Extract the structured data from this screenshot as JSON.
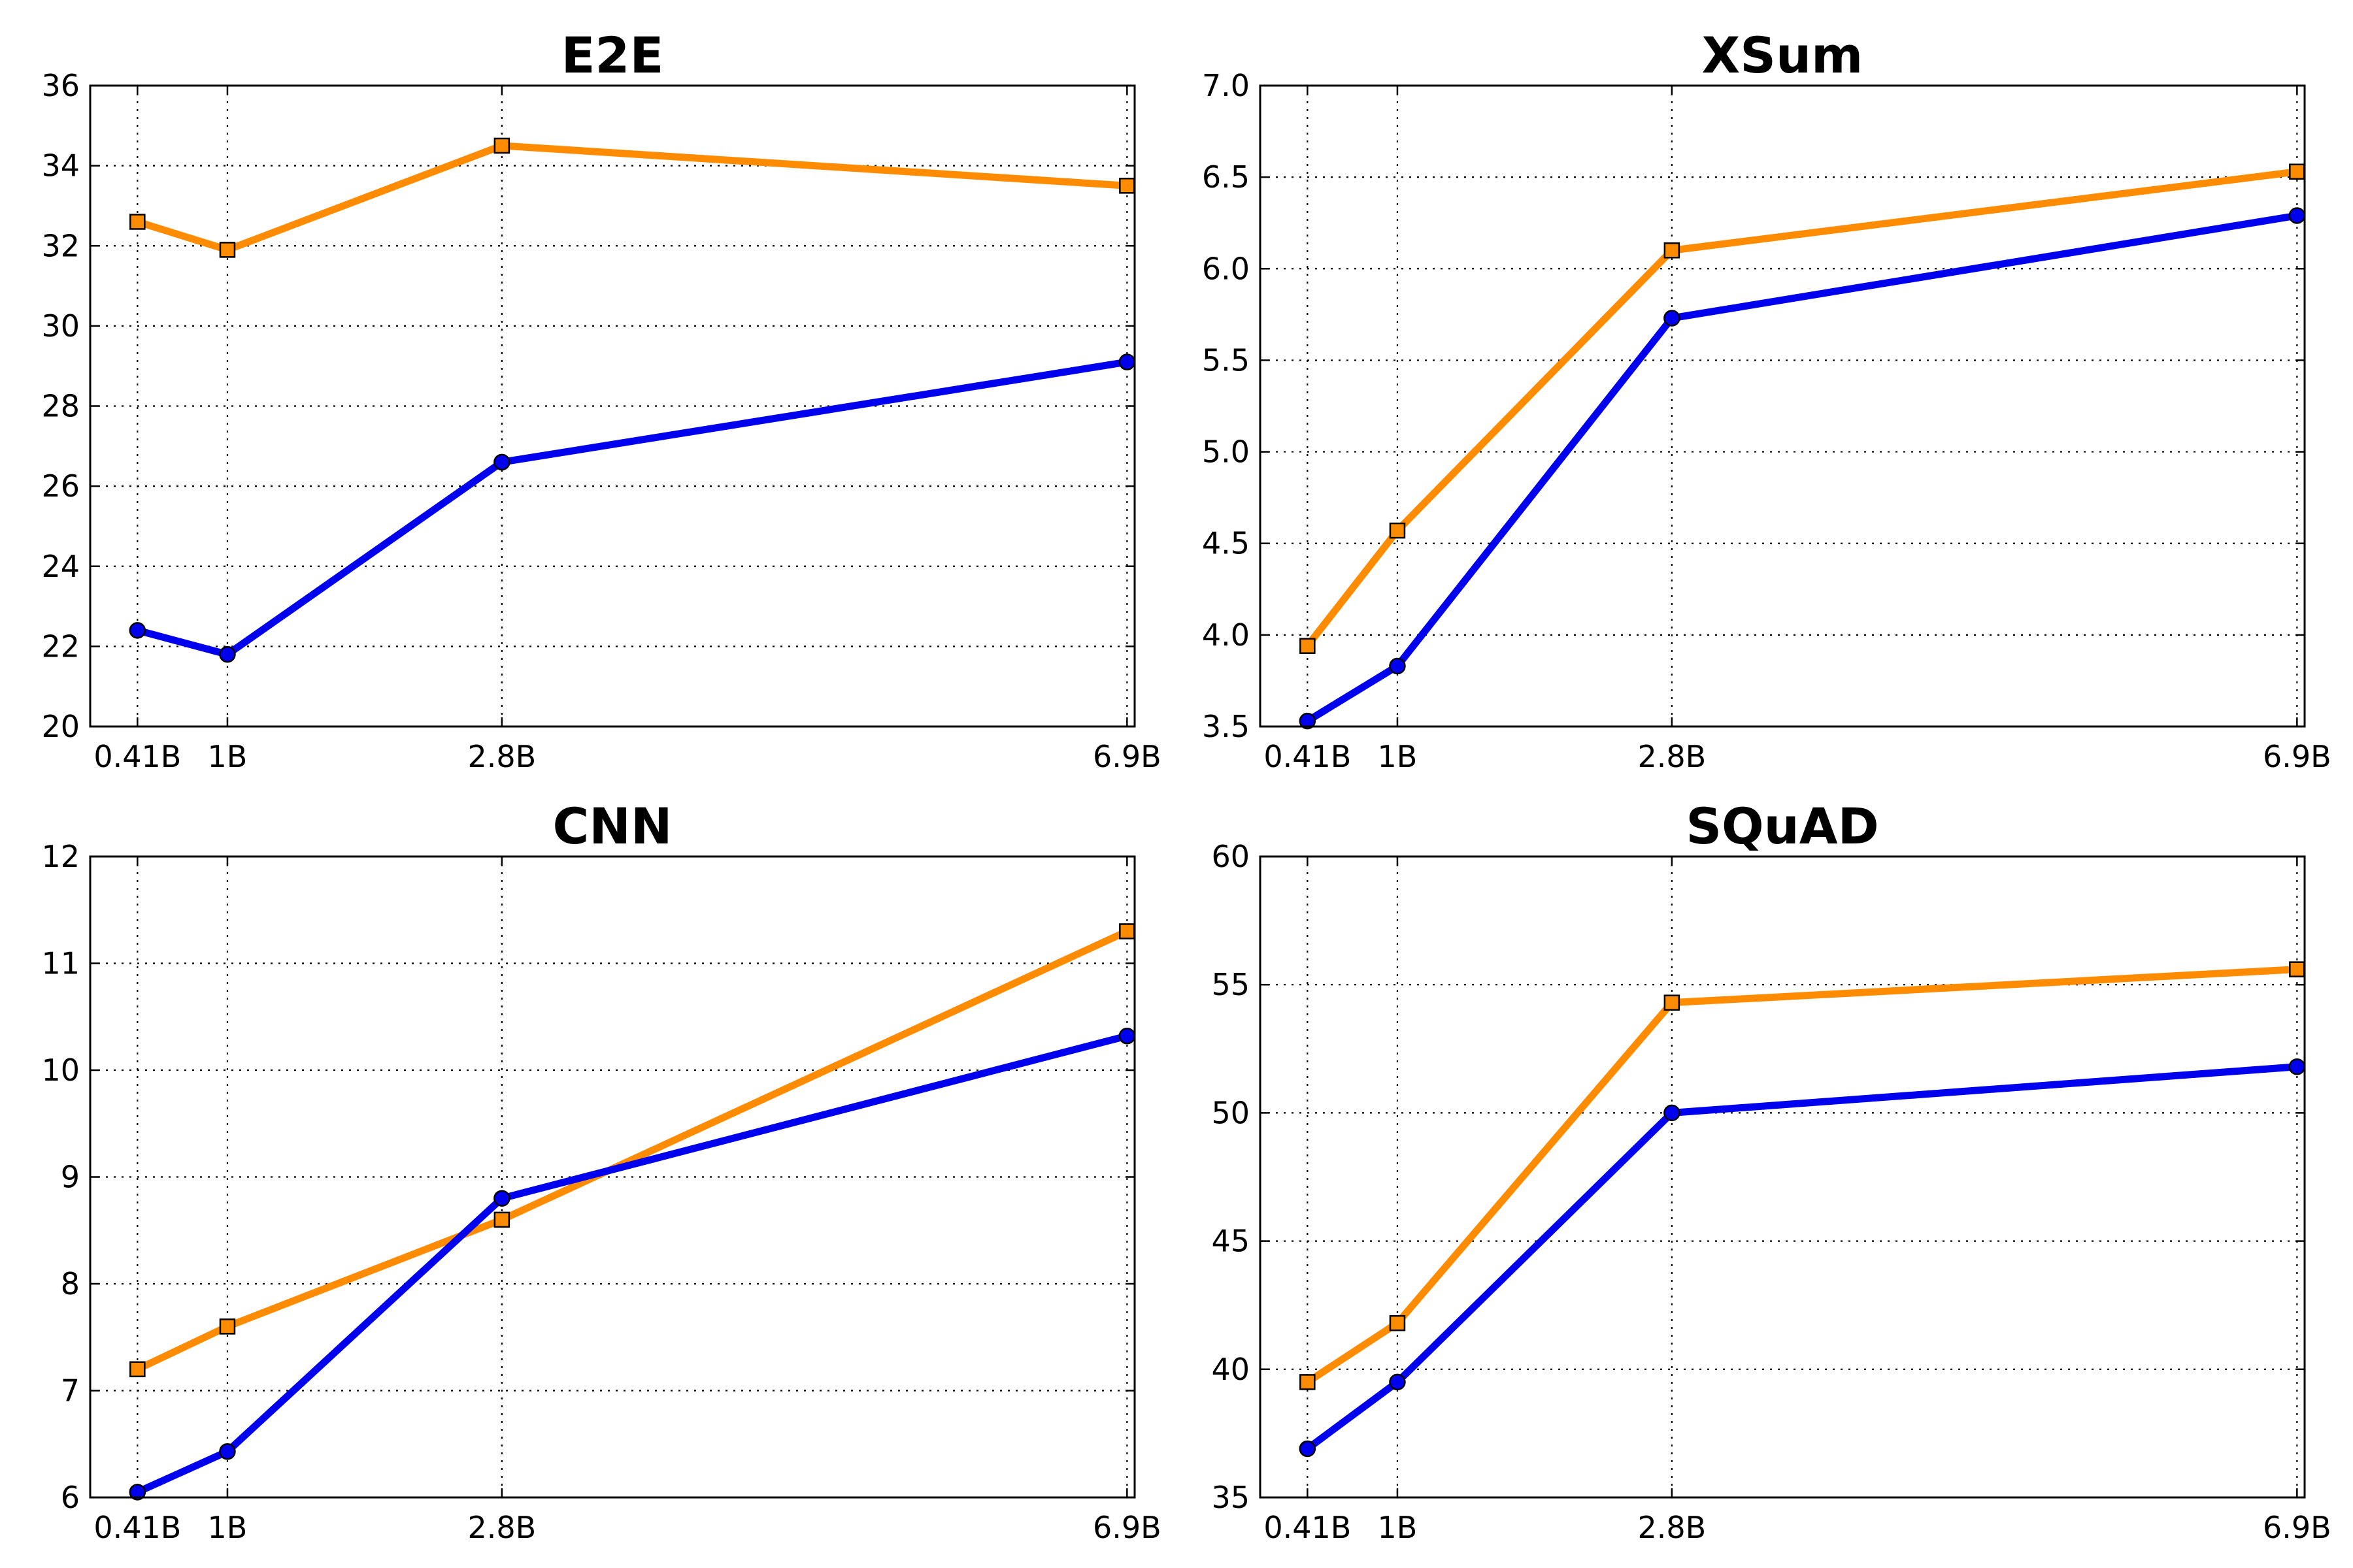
{
  "colors": {
    "series_orange": "#ff8c00",
    "series_blue": "#0000ee",
    "grid": "#000000",
    "axes": "#000000"
  },
  "chart_data": [
    {
      "type": "line",
      "title": "E2E",
      "x_categories": [
        "0.41B",
        "1B",
        "2.8B",
        "6.9B"
      ],
      "x_values": [
        0.41,
        1.0,
        2.8,
        6.9
      ],
      "xlim": [
        0.1,
        6.95
      ],
      "ylim": [
        20,
        36
      ],
      "yticks": [
        "20",
        "22",
        "24",
        "26",
        "28",
        "30",
        "32",
        "34",
        "36"
      ],
      "grid": true,
      "series": [
        {
          "color": "#ff8c00",
          "marker": "square",
          "values": [
            32.6,
            31.9,
            34.5,
            33.5
          ]
        },
        {
          "color": "#0000ee",
          "marker": "circle",
          "values": [
            22.4,
            21.8,
            26.6,
            29.1
          ]
        }
      ]
    },
    {
      "type": "line",
      "title": "XSum",
      "x_categories": [
        "0.41B",
        "1B",
        "2.8B",
        "6.9B"
      ],
      "x_values": [
        0.41,
        1.0,
        2.8,
        6.9
      ],
      "xlim": [
        0.1,
        6.95
      ],
      "ylim": [
        3.5,
        7.0
      ],
      "yticks": [
        "3.5",
        "4.0",
        "4.5",
        "5.0",
        "5.5",
        "6.0",
        "6.5",
        "7.0"
      ],
      "grid": true,
      "series": [
        {
          "color": "#ff8c00",
          "marker": "square",
          "values": [
            3.94,
            4.57,
            6.1,
            6.53
          ]
        },
        {
          "color": "#0000ee",
          "marker": "circle",
          "values": [
            3.53,
            3.83,
            5.73,
            6.29
          ]
        }
      ]
    },
    {
      "type": "line",
      "title": "CNN",
      "x_categories": [
        "0.41B",
        "1B",
        "2.8B",
        "6.9B"
      ],
      "x_values": [
        0.41,
        1.0,
        2.8,
        6.9
      ],
      "xlim": [
        0.1,
        6.95
      ],
      "ylim": [
        6,
        12
      ],
      "yticks": [
        "6",
        "7",
        "8",
        "9",
        "10",
        "11",
        "12"
      ],
      "grid": true,
      "series": [
        {
          "color": "#ff8c00",
          "marker": "square",
          "values": [
            7.2,
            7.6,
            8.6,
            11.3
          ]
        },
        {
          "color": "#0000ee",
          "marker": "circle",
          "values": [
            6.05,
            6.43,
            8.8,
            10.32
          ]
        }
      ]
    },
    {
      "type": "line",
      "title": "SQuAD",
      "x_categories": [
        "0.41B",
        "1B",
        "2.8B",
        "6.9B"
      ],
      "x_values": [
        0.41,
        1.0,
        2.8,
        6.9
      ],
      "xlim": [
        0.1,
        6.95
      ],
      "ylim": [
        35,
        60
      ],
      "yticks": [
        "35",
        "40",
        "45",
        "50",
        "55",
        "60"
      ],
      "grid": true,
      "series": [
        {
          "color": "#ff8c00",
          "marker": "square",
          "values": [
            39.5,
            41.8,
            54.3,
            55.6
          ]
        },
        {
          "color": "#0000ee",
          "marker": "circle",
          "values": [
            36.9,
            39.5,
            50.0,
            51.8
          ]
        }
      ]
    }
  ]
}
